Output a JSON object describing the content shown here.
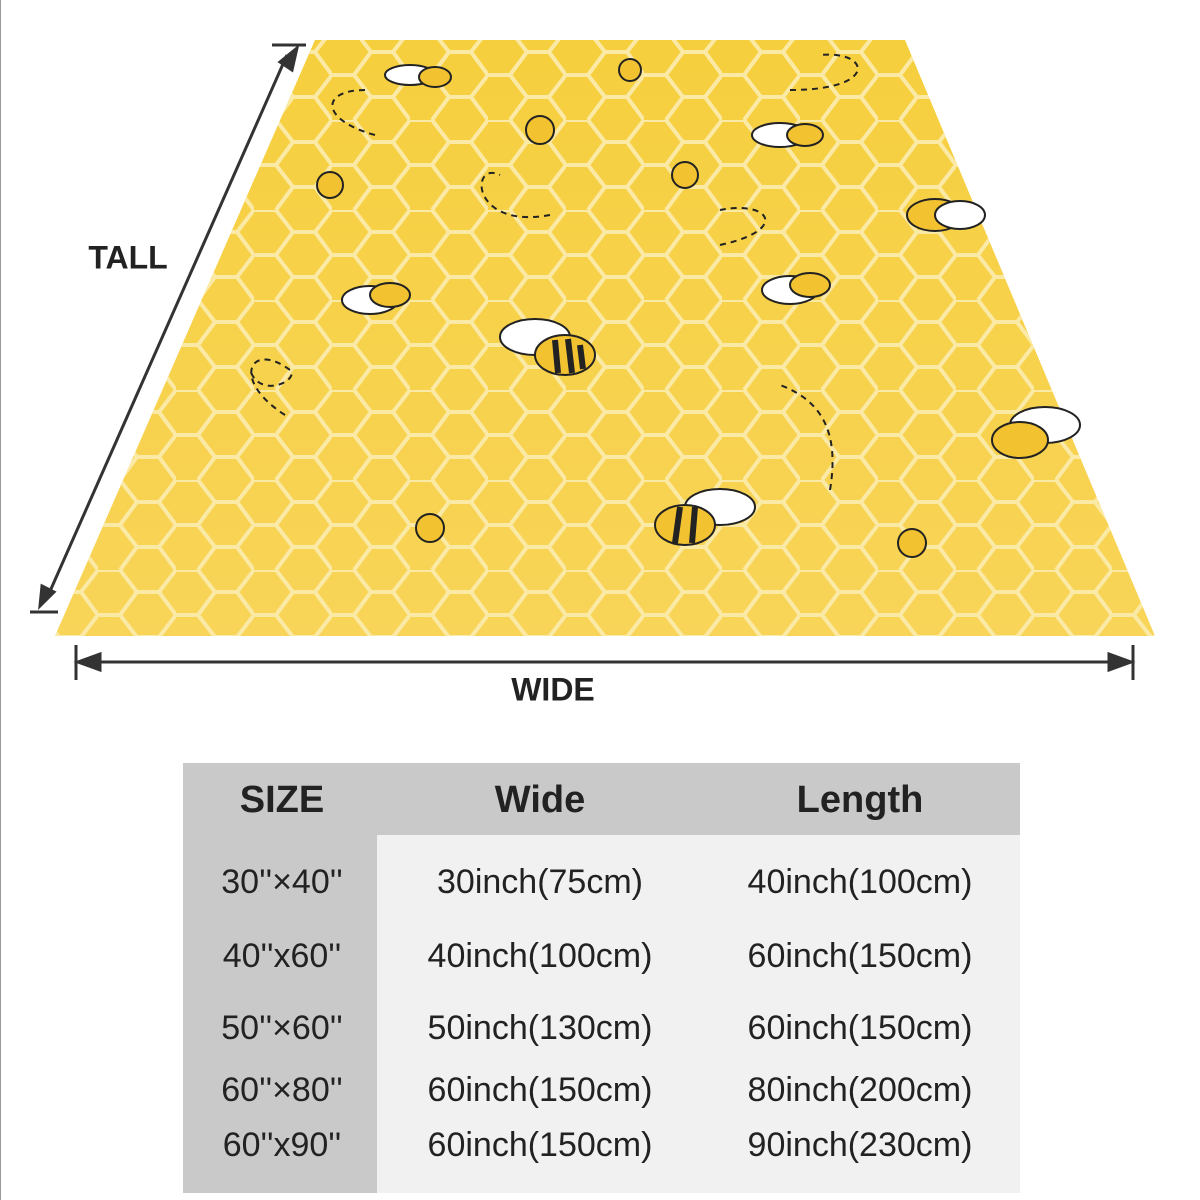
{
  "dimension_labels": {
    "tall": "TALL",
    "wide": "WIDE"
  },
  "table": {
    "header": [
      "SIZE",
      "Wide",
      "Length"
    ],
    "rows": [
      [
        "30''×40''",
        "30inch(75cm)",
        "40inch(100cm)"
      ],
      [
        "40''x60''",
        "40inch(100cm)",
        "60inch(150cm)"
      ],
      [
        "50''×60''",
        "50inch(130cm)",
        "60inch(150cm)"
      ],
      [
        "60''×80''",
        "60inch(150cm)",
        "80inch(200cm)"
      ],
      [
        "60''x90''",
        "60inch(150cm)",
        "90inch(230cm)"
      ]
    ]
  }
}
